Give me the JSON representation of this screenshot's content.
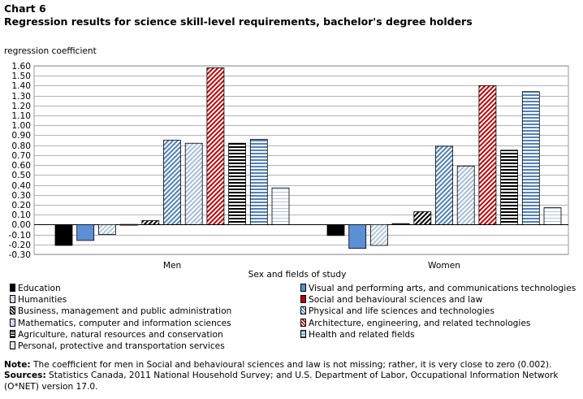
{
  "title_line1": "Chart 6",
  "title_line2": "Regression results for science skill-level requirements, bachelor's degree holders",
  "chart_data": {
    "type": "bar",
    "ylabel": "regression coefficient",
    "xlabel": "Sex and fields of study",
    "categories": [
      "Men",
      "Women"
    ],
    "ylim": [
      -0.3,
      1.6
    ],
    "yticks": [
      "1.60",
      "1.50",
      "1.40",
      "1.30",
      "1.20",
      "1.10",
      "1.00",
      "0.90",
      "0.80",
      "0.70",
      "0.60",
      "0.50",
      "0.40",
      "0.30",
      "0.20",
      "0.10",
      "0.00",
      "-0.10",
      "-0.20",
      "-0.30"
    ],
    "grid": true,
    "legend_position": "bottom",
    "series": [
      {
        "name": "Education",
        "values": [
          -0.21,
          -0.11
        ],
        "color": "#000000",
        "pattern": "solid"
      },
      {
        "name": "Visual and performing arts, and communications technologies",
        "values": [
          -0.16,
          -0.24
        ],
        "color": "#5b8fd6",
        "pattern": "solid"
      },
      {
        "name": "Humanities",
        "values": [
          -0.1,
          -0.21
        ],
        "color": "#dbe4f3",
        "pattern": "diag-light"
      },
      {
        "name": "Social and behavioural sciences and law",
        "values": [
          0.002,
          0.01
        ],
        "color": "#c00000",
        "pattern": "solid"
      },
      {
        "name": "Business, management and public administration",
        "values": [
          0.04,
          0.13
        ],
        "color": "#000000",
        "pattern": "diag-black"
      },
      {
        "name": "Physical and life sciences and technologies",
        "values": [
          0.85,
          0.79
        ],
        "color": "#4f81bd",
        "pattern": "diag-blue"
      },
      {
        "name": "Mathematics, computer and information sciences",
        "values": [
          0.82,
          0.59
        ],
        "color": "#a7bcdc",
        "pattern": "diag-lightblue"
      },
      {
        "name": "Architecture, engineering, and related technologies",
        "values": [
          1.58,
          1.4
        ],
        "color": "#c00000",
        "pattern": "diag-red"
      },
      {
        "name": "Agriculture, natural resources and conservation",
        "values": [
          0.82,
          0.75
        ],
        "color": "#000000",
        "pattern": "horiz-black"
      },
      {
        "name": "Health and related fields",
        "values": [
          0.86,
          1.34
        ],
        "color": "#4f81bd",
        "pattern": "horiz-blue"
      },
      {
        "name": "Personal, protective and transportation services",
        "values": [
          0.37,
          0.17
        ],
        "color": "#8eaadb",
        "pattern": "horiz-light"
      }
    ]
  },
  "notes": {
    "note_label": "Note:",
    "note_text": " The coefficient for men in Social and behavioural sciences and law is not missing; rather, it is very close to zero (0.002).",
    "sources_label": "Sources:",
    "sources_text": " Statistics Canada, 2011 National Household Survey; and U.S. Department of Labor, Occupational Information Network (O*NET) version 17.0."
  }
}
